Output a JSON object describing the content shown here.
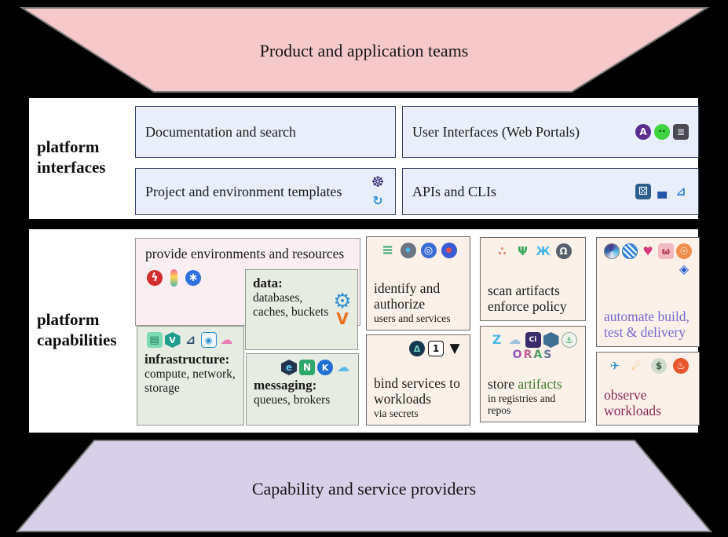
{
  "banners": {
    "top": {
      "label": "Product and application teams",
      "fill": "#f5c9ca"
    },
    "bottom": {
      "label": "Capability and service providers",
      "fill": "#d8d0e8"
    },
    "border": "#777777"
  },
  "interfaces": {
    "label": "platform interfaces",
    "docs": {
      "label": "Documentation and search"
    },
    "ui": {
      "label": "User Interfaces (Web Portals)",
      "icons": [
        {
          "name": "purple-a-portal-icon",
          "glyph": "A",
          "fg": "#ffffff",
          "bg": "#5b2d8f",
          "shape": "circle",
          "size": 12,
          "bold": true
        },
        {
          "name": "alien-icon",
          "glyph": "••",
          "fg": "#083008",
          "bg": "#3fd43f",
          "shape": "circle",
          "size": 8
        },
        {
          "name": "disk-stack-icon",
          "glyph": "≣",
          "fg": "#e8e8e8",
          "bg": "#4a4a52",
          "shape": "square",
          "size": 12
        }
      ]
    },
    "templates": {
      "label": "Project and environment templates",
      "icons": [
        {
          "name": "helm-icon",
          "glyph": "☸",
          "fg": "#2a2a72",
          "shape": "plain",
          "size": 19
        },
        {
          "name": "operator-rings-icon",
          "glyph": "↻",
          "fg": "#2e8fd4",
          "shape": "plain",
          "size": 16,
          "bold": true
        }
      ]
    },
    "apis": {
      "label": "APIs and CLIs",
      "icons": [
        {
          "name": "dice-cube-icon",
          "glyph": "⚄",
          "fg": "#ffffff",
          "bg": "#2d5e8d",
          "shape": "square",
          "size": 14
        },
        {
          "name": "bowler-hat-icon",
          "glyph": "▄",
          "fg": "#2456a8",
          "shape": "plain",
          "size": 15
        },
        {
          "name": "sailboat-icon",
          "glyph": "⊿",
          "fg": "#2e7fd4",
          "shape": "plain",
          "size": 15,
          "bold": true
        }
      ]
    }
  },
  "capabilities": {
    "label": "platform capabilities",
    "provide": {
      "title": "provide environments and resources",
      "icons": [
        {
          "name": "lightning-badge-icon",
          "glyph": "ϟ",
          "fg": "#ffffff",
          "bg": "#d42d2d",
          "shape": "circle",
          "size": 14,
          "bold": true
        },
        {
          "name": "popsicle-icon",
          "glyph": "",
          "bg": "linear-gradient(180deg,#f06292 0%,#ffd54f 45%,#4db6ac 100%)",
          "shape": "pill"
        },
        {
          "name": "blue-heptagon-icon",
          "glyph": "∗",
          "fg": "#ffffff",
          "bg": "#2f6fe0",
          "shape": "circle",
          "size": 15,
          "bold": true
        }
      ]
    },
    "infrastructure": {
      "title": "infrastructure:",
      "detail": "compute, network, storage",
      "icons": [
        {
          "name": "striped-cube-icon",
          "glyph": "▤",
          "fg": "#1f7a5c",
          "bg": "#7adbb4",
          "shape": "square",
          "size": 13
        },
        {
          "name": "hex-v-icon",
          "glyph": "V",
          "fg": "#ffffff",
          "bg": "#1f9e8e",
          "shape": "hex",
          "size": 11,
          "bold": true
        },
        {
          "name": "dark-sailboat-icon",
          "glyph": "⊿",
          "fg": "#2d4a73",
          "shape": "plain",
          "size": 15,
          "bold": true
        },
        {
          "name": "appliance-icon",
          "glyph": "◉",
          "fg": "#2e8fd4",
          "bg": "#eef6fc",
          "border": "#2e8fd4",
          "shape": "square",
          "size": 11
        },
        {
          "name": "pink-clouds-icon",
          "glyph": "☁",
          "fg": "#e87ab4",
          "shape": "plain",
          "size": 16
        }
      ]
    },
    "data": {
      "title": "data:",
      "detail": "databases, caches, buckets",
      "icons": [
        {
          "name": "gear-face-icon",
          "glyph": "⚙",
          "fg": "#2e8fd4",
          "shape": "plain",
          "size": 26
        },
        {
          "name": "orange-v-icon",
          "glyph": "V",
          "fg": "#e8701f",
          "shape": "plain",
          "size": 20,
          "bold": true
        }
      ]
    },
    "messaging": {
      "title": "messaging:",
      "detail": "queues, brokers",
      "icons": [
        {
          "name": "hexagon-swirl-icon",
          "glyph": "e",
          "fg": "#5bc8f0",
          "bg": "#23354d",
          "shape": "hex",
          "size": 12,
          "bold": true
        },
        {
          "name": "nats-icon",
          "glyph": "N",
          "fg": "#ffffff",
          "bg": "#2ea86b",
          "shape": "square",
          "size": 12,
          "bold": true
        },
        {
          "name": "kubemq-icon",
          "glyph": "K",
          "fg": "#ffffff",
          "bg": "#1f6fd4",
          "shape": "circle",
          "size": 11,
          "bold": true
        },
        {
          "name": "blue-cloud-icon",
          "glyph": "☁",
          "fg": "#5bb8e8",
          "shape": "plain",
          "size": 16
        }
      ]
    },
    "identify": {
      "title": "identify and authorize",
      "sub": "users and services",
      "icons": [
        {
          "name": "list-lines-icon",
          "glyph": "≡",
          "fg": "#3aa87c",
          "shape": "plain",
          "size": 18,
          "bold": true
        },
        {
          "name": "gear-gem-icon",
          "glyph": "◆",
          "fg": "#4db6e8",
          "bg": "#6b7480",
          "shape": "circle",
          "size": 10
        },
        {
          "name": "badge-icon",
          "glyph": "◎",
          "fg": "#ffffff",
          "bg": "#3b6cd4",
          "shape": "circle",
          "size": 13
        },
        {
          "name": "pinwheel-icon",
          "glyph": "●",
          "fg": "#e05252",
          "bg": "#3b5bd4",
          "shape": "circle",
          "size": 9
        }
      ]
    },
    "bind": {
      "title": "bind services to workloads",
      "sub": "via secrets",
      "icons": [
        {
          "name": "lantern-badge-icon",
          "glyph": "Δ",
          "fg": "#6fd4c4",
          "bg": "#15374f",
          "shape": "circle",
          "size": 11,
          "bold": true
        },
        {
          "name": "onepassword-icon",
          "glyph": "1",
          "fg": "#111111",
          "bg": "#ffffff",
          "border": "#111111",
          "shape": "square",
          "size": 12,
          "bold": true
        },
        {
          "name": "vault-triangle-icon",
          "glyph": "▼",
          "fg": "#141414",
          "shape": "plain",
          "size": 17
        }
      ]
    },
    "scan": {
      "title": "scan artifacts enforce policy",
      "icons": [
        {
          "name": "constellation-icon",
          "glyph": "∴",
          "fg": "#e8826b",
          "shape": "plain",
          "size": 15,
          "bold": true
        },
        {
          "name": "green-tree-icon",
          "glyph": "Ψ",
          "fg": "#3aa85c",
          "shape": "plain",
          "size": 15,
          "bold": true
        },
        {
          "name": "blue-wings-icon",
          "glyph": "Ж",
          "fg": "#4db6e8",
          "shape": "plain",
          "size": 15,
          "bold": true
        },
        {
          "name": "helmet-icon",
          "glyph": "Ω",
          "fg": "#f0f0f0",
          "bg": "#57616d",
          "shape": "circle",
          "size": 12,
          "bold": true
        }
      ]
    },
    "store": {
      "title_plain": "store",
      "title_accent": "artifacts",
      "sub": "in registries and repos",
      "logo_text": "ORAS",
      "icons": [
        {
          "name": "zot-spiral-icon",
          "glyph": "Z",
          "fg": "#4db6e8",
          "shape": "plain",
          "size": 16,
          "bold": true
        },
        {
          "name": "cloud-ship-icon",
          "glyph": "☁",
          "fg": "#9ec4de",
          "shape": "plain",
          "size": 16
        },
        {
          "name": "oci-icon",
          "glyph": "Ci",
          "fg": "#ffffff",
          "bg": "#3b2d6b",
          "shape": "square",
          "size": 9,
          "bold": true
        },
        {
          "name": "hexagon-icon",
          "glyph": "",
          "bg": "#3f6f93",
          "shape": "hex"
        },
        {
          "name": "harbor-icon",
          "glyph": "⚓",
          "fg": "#3aa85c",
          "bg": "#eef2ee",
          "border": "#9aa89a",
          "shape": "circle",
          "size": 11
        }
      ]
    },
    "automate": {
      "title": "automate build, test & delivery",
      "icons": [
        {
          "name": "swirl-sphere-icon",
          "glyph": "",
          "bg": "conic-gradient(#4a3a8f,#4db6e8,#e8e8f4,#2b5fa0,#4a3a8f)",
          "shape": "circle",
          "border": "#888888"
        },
        {
          "name": "striped-ball-icon",
          "glyph": "",
          "bg": "repeating-linear-gradient(45deg,#2b7bd4 0 2.5px,#e8f0fa 2.5px 5px)",
          "shape": "circle",
          "border": "#2b7bd4"
        },
        {
          "name": "tulip-birds-icon",
          "glyph": "♥",
          "fg": "#d43a7a",
          "shape": "plain",
          "size": 15
        },
        {
          "name": "robot-cat-icon",
          "glyph": "ω",
          "fg": "#a83a4a",
          "bg": "#f2b8c4",
          "shape": "square",
          "size": 12,
          "bold": true
        },
        {
          "name": "orange-squid-icon",
          "glyph": "☉",
          "fg": "#ffffff",
          "bg": "#ef8e4f",
          "shape": "circle",
          "size": 12
        },
        {
          "name": "layered-diamond-icon",
          "glyph": "◈",
          "fg": "#2b5fd4",
          "shape": "plain",
          "size": 16
        }
      ]
    },
    "observe": {
      "title": "observe workloads",
      "icons": [
        {
          "name": "blue-bird-icon",
          "glyph": "✈",
          "fg": "#3b8fd4",
          "shape": "plain",
          "size": 15
        },
        {
          "name": "torch-icon",
          "glyph": "☄",
          "fg": "#e8a23a",
          "shape": "plain",
          "size": 15
        },
        {
          "name": "piggy-bank-icon",
          "glyph": "$",
          "fg": "#3a5c3a",
          "bg": "#cfdccf",
          "shape": "circle",
          "size": 12,
          "bold": true
        },
        {
          "name": "prometheus-flame-icon",
          "glyph": "♨",
          "fg": "#ffffff",
          "bg": "#e8552d",
          "shape": "circle",
          "size": 13
        }
      ]
    }
  },
  "colors": {
    "automate_text": "#7a68cf",
    "observe_text": "#8b2a55",
    "store_accent": "#3a7d2c"
  }
}
